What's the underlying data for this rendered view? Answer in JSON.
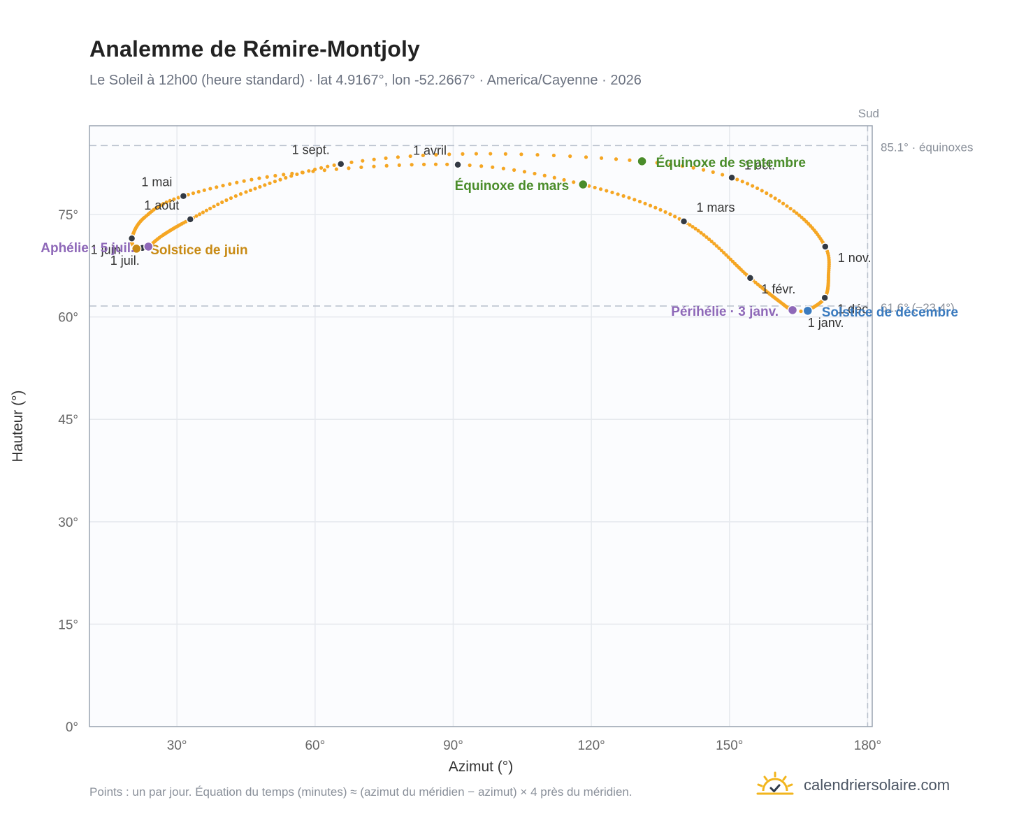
{
  "title": "Analemme de Rémire-Montjoly",
  "subtitle": "Le Soleil à 12h00 (heure standard) · lat 4.9167°, lon -52.2667° · America/Cayenne · 2026",
  "footnote": "Points : un par jour. Équation du temps (minutes) ≈ (azimut du méridien − azimut) × 4 près du méridien.",
  "brand": {
    "name": "calendriersolaire.com",
    "logo_icon": "sun-check-icon"
  },
  "chart_data": {
    "type": "scatter",
    "xlabel": "Azimut (°)",
    "ylabel": "Hauteur (°)",
    "xlim": [
      11,
      181
    ],
    "ylim": [
      0,
      88
    ],
    "xticks": [
      30,
      60,
      90,
      120,
      150,
      180
    ],
    "yticks": [
      0,
      15,
      30,
      45,
      60,
      75
    ],
    "tick_suffix": "°",
    "grid": true,
    "colors": {
      "path": "#f5a623",
      "month_marker": "#333a44",
      "equinox": "#4a8c2a",
      "june_solstice": "#c88a14",
      "december_solstice": "#3b7bbf",
      "apsis": "#8e68b8",
      "ref_line": "#b8c0cc",
      "background": "#fbfcfe"
    },
    "meridian": {
      "azimuth": 180,
      "label": "Sud"
    },
    "reference_lines": [
      {
        "altitude": 85.1,
        "label": "85.1° · équinoxes"
      },
      {
        "altitude": 61.6,
        "label": "61.6° (−23.4°)"
      }
    ],
    "keypoints": [
      {
        "date": "2026-01-01",
        "az": 167.0,
        "alt": 60.8
      },
      {
        "date": "2026-01-03",
        "az": 163.7,
        "alt": 61.0
      },
      {
        "date": "2026-01-15",
        "az": 161.0,
        "alt": 62.2
      },
      {
        "date": "2026-02-01",
        "az": 154.5,
        "alt": 65.7
      },
      {
        "date": "2026-03-01",
        "az": 140.1,
        "alt": 74.0
      },
      {
        "date": "2026-03-20",
        "az": 118.2,
        "alt": 79.4
      },
      {
        "date": "2026-04-01",
        "az": 91.0,
        "alt": 82.3
      },
      {
        "date": "2026-04-15",
        "az": 55.0,
        "alt": 81.0
      },
      {
        "date": "2026-05-01",
        "az": 31.4,
        "alt": 77.7
      },
      {
        "date": "2026-05-15",
        "az": 23.0,
        "alt": 74.6
      },
      {
        "date": "2026-06-01",
        "az": 20.2,
        "alt": 71.5
      },
      {
        "date": "2026-06-21",
        "az": 21.2,
        "alt": 70.0
      },
      {
        "date": "2026-07-01",
        "az": 22.5,
        "alt": 70.1
      },
      {
        "date": "2026-07-05",
        "az": 23.8,
        "alt": 70.3
      },
      {
        "date": "2026-07-15",
        "az": 27.0,
        "alt": 72.0
      },
      {
        "date": "2026-08-01",
        "az": 32.9,
        "alt": 74.3
      },
      {
        "date": "2026-08-15",
        "az": 45.0,
        "alt": 78.3
      },
      {
        "date": "2026-09-01",
        "az": 65.6,
        "alt": 82.4
      },
      {
        "date": "2026-09-12",
        "az": 95.0,
        "alt": 83.9
      },
      {
        "date": "2026-09-23",
        "az": 131.0,
        "alt": 82.8
      },
      {
        "date": "2026-10-01",
        "az": 150.5,
        "alt": 80.4
      },
      {
        "date": "2026-10-15",
        "az": 164.0,
        "alt": 75.5
      },
      {
        "date": "2026-11-01",
        "az": 170.8,
        "alt": 70.3
      },
      {
        "date": "2026-11-15",
        "az": 171.5,
        "alt": 66.0
      },
      {
        "date": "2026-12-01",
        "az": 170.7,
        "alt": 62.8
      },
      {
        "date": "2026-12-21",
        "az": 167.0,
        "alt": 60.9
      },
      {
        "date": "2026-12-31",
        "az": 167.0,
        "alt": 60.8
      }
    ],
    "month_markers": [
      {
        "label": "1 janv.",
        "az": 167.0,
        "alt": 60.8,
        "dx": 0,
        "dy": 22,
        "anchor": "start"
      },
      {
        "label": "1 févr.",
        "az": 154.5,
        "alt": 65.7,
        "dx": 16,
        "dy": 22,
        "anchor": "start"
      },
      {
        "label": "1 mars",
        "az": 140.1,
        "alt": 74.0,
        "dx": 18,
        "dy": -14,
        "anchor": "start"
      },
      {
        "label": "1 avril",
        "az": 91.0,
        "alt": 82.3,
        "dx": -16,
        "dy": -14,
        "anchor": "end"
      },
      {
        "label": "1 mai",
        "az": 31.4,
        "alt": 77.7,
        "dx": -16,
        "dy": -14,
        "anchor": "end"
      },
      {
        "label": "1 juin",
        "az": 20.2,
        "alt": 71.5,
        "dx": -16,
        "dy": 22,
        "anchor": "end"
      },
      {
        "label": "1 juil.",
        "az": 22.5,
        "alt": 70.1,
        "dx": -4,
        "dy": 24,
        "anchor": "end"
      },
      {
        "label": "1 août",
        "az": 32.9,
        "alt": 74.3,
        "dx": -16,
        "dy": -14,
        "anchor": "end"
      },
      {
        "label": "1 sept.",
        "az": 65.6,
        "alt": 82.4,
        "dx": -16,
        "dy": -14,
        "anchor": "end"
      },
      {
        "label": "1 oct.",
        "az": 150.5,
        "alt": 80.4,
        "dx": 18,
        "dy": -12,
        "anchor": "start"
      },
      {
        "label": "1 nov.",
        "az": 170.8,
        "alt": 70.3,
        "dx": 18,
        "dy": 22,
        "anchor": "start"
      },
      {
        "label": "1 déc.",
        "az": 170.7,
        "alt": 62.8,
        "dx": 18,
        "dy": 22,
        "anchor": "start"
      }
    ],
    "events": [
      {
        "label": "Équinoxe de mars",
        "az": 118.2,
        "alt": 79.4,
        "type": "equinox",
        "dx": -20,
        "dy": 8,
        "anchor": "end"
      },
      {
        "label": "Équinoxe de septembre",
        "az": 131.0,
        "alt": 82.8,
        "type": "equinox",
        "dx": 20,
        "dy": 8,
        "anchor": "start"
      },
      {
        "label": "Solstice de juin",
        "az": 21.2,
        "alt": 70.0,
        "type": "june_solstice",
        "dx": 20,
        "dy": 8,
        "anchor": "start"
      },
      {
        "label": "Solstice de décembre",
        "az": 167.0,
        "alt": 60.9,
        "type": "december_solstice",
        "dx": 20,
        "dy": 8,
        "anchor": "start"
      },
      {
        "label": "Périhélie · 3 janv.",
        "az": 163.7,
        "alt": 61.0,
        "type": "apsis",
        "dx": -20,
        "dy": 8,
        "anchor": "end"
      },
      {
        "label": "Aphélie · 5 juil.",
        "az": 23.8,
        "alt": 70.3,
        "type": "apsis",
        "dx": -20,
        "dy": 8,
        "anchor": "end"
      }
    ]
  }
}
